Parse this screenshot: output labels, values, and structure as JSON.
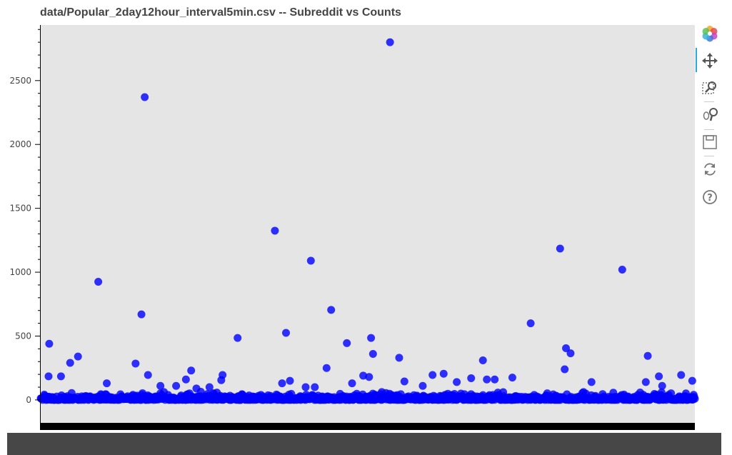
{
  "page_title": "data/Popular_2day12hour_interval5min.csv -- Subreddit vs Counts",
  "colors": {
    "plot_bg": "#e5e5e5",
    "point": "#0000ff",
    "axis": "#000000",
    "accent": "#26aae1"
  },
  "toolbar": {
    "tools": [
      {
        "name": "bokeh-logo",
        "icon": "bokeh-logo-icon"
      },
      {
        "name": "pan",
        "icon": "pan-icon",
        "active": true
      },
      {
        "name": "box-zoom",
        "icon": "box-zoom-icon"
      },
      {
        "name": "wheel-zoom",
        "icon": "wheel-zoom-icon"
      },
      {
        "name": "save",
        "icon": "save-icon"
      },
      {
        "name": "reset",
        "icon": "reset-icon"
      },
      {
        "name": "help",
        "icon": "help-icon"
      }
    ]
  },
  "chart_data": {
    "type": "scatter",
    "title": "data/Popular_2day12hour_interval5min.csv -- Subreddit vs Counts",
    "xlabel": "",
    "ylabel": "",
    "ylim": [
      -185,
      2935
    ],
    "y_ticks": [
      0,
      500,
      1000,
      1500,
      2000,
      2500
    ],
    "x_ticks": [],
    "grid": false,
    "legend": "none",
    "x_positions_normalized": true,
    "outliers": [
      {
        "x": 0.013,
        "y": 440
      },
      {
        "x": 0.012,
        "y": 185
      },
      {
        "x": 0.031,
        "y": 185
      },
      {
        "x": 0.045,
        "y": 290
      },
      {
        "x": 0.057,
        "y": 340
      },
      {
        "x": 0.088,
        "y": 925
      },
      {
        "x": 0.101,
        "y": 130
      },
      {
        "x": 0.145,
        "y": 285
      },
      {
        "x": 0.154,
        "y": 670
      },
      {
        "x": 0.159,
        "y": 2370
      },
      {
        "x": 0.164,
        "y": 195
      },
      {
        "x": 0.183,
        "y": 110
      },
      {
        "x": 0.207,
        "y": 110
      },
      {
        "x": 0.222,
        "y": 160
      },
      {
        "x": 0.23,
        "y": 230
      },
      {
        "x": 0.238,
        "y": 90
      },
      {
        "x": 0.258,
        "y": 100
      },
      {
        "x": 0.276,
        "y": 155
      },
      {
        "x": 0.278,
        "y": 195
      },
      {
        "x": 0.301,
        "y": 485
      },
      {
        "x": 0.358,
        "y": 1325
      },
      {
        "x": 0.369,
        "y": 130
      },
      {
        "x": 0.375,
        "y": 525
      },
      {
        "x": 0.381,
        "y": 150
      },
      {
        "x": 0.405,
        "y": 100
      },
      {
        "x": 0.413,
        "y": 1090
      },
      {
        "x": 0.419,
        "y": 100
      },
      {
        "x": 0.437,
        "y": 250
      },
      {
        "x": 0.444,
        "y": 705
      },
      {
        "x": 0.468,
        "y": 445
      },
      {
        "x": 0.476,
        "y": 130
      },
      {
        "x": 0.493,
        "y": 190
      },
      {
        "x": 0.502,
        "y": 180
      },
      {
        "x": 0.505,
        "y": 485
      },
      {
        "x": 0.508,
        "y": 360
      },
      {
        "x": 0.534,
        "y": 2800
      },
      {
        "x": 0.548,
        "y": 330
      },
      {
        "x": 0.556,
        "y": 145
      },
      {
        "x": 0.584,
        "y": 110
      },
      {
        "x": 0.599,
        "y": 195
      },
      {
        "x": 0.616,
        "y": 205
      },
      {
        "x": 0.636,
        "y": 140
      },
      {
        "x": 0.658,
        "y": 170
      },
      {
        "x": 0.676,
        "y": 310
      },
      {
        "x": 0.682,
        "y": 160
      },
      {
        "x": 0.694,
        "y": 160
      },
      {
        "x": 0.721,
        "y": 175
      },
      {
        "x": 0.749,
        "y": 600
      },
      {
        "x": 0.794,
        "y": 1185
      },
      {
        "x": 0.801,
        "y": 240
      },
      {
        "x": 0.803,
        "y": 405
      },
      {
        "x": 0.81,
        "y": 365
      },
      {
        "x": 0.842,
        "y": 140
      },
      {
        "x": 0.889,
        "y": 1020
      },
      {
        "x": 0.925,
        "y": 140
      },
      {
        "x": 0.928,
        "y": 345
      },
      {
        "x": 0.945,
        "y": 185
      },
      {
        "x": 0.95,
        "y": 110
      },
      {
        "x": 0.979,
        "y": 195
      },
      {
        "x": 0.996,
        "y": 150
      }
    ],
    "dense_band": {
      "count": 1100,
      "y_range": [
        0,
        30
      ],
      "note": "most points (counts 0-30) overlap into a solid band"
    }
  }
}
